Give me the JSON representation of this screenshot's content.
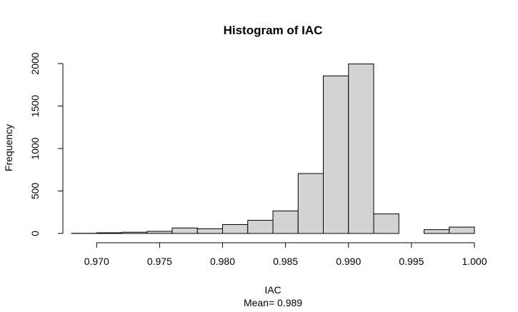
{
  "chart_data": {
    "type": "bar",
    "title": "Histogram of IAC",
    "xlabel": "IAC",
    "subtitle": "Mean= 0.989",
    "ylabel": "Frequency",
    "xlim": [
      0.968,
      1.0
    ],
    "ylim": [
      0,
      2000
    ],
    "x_ticks": [
      "0.970",
      "0.975",
      "0.980",
      "0.985",
      "0.990",
      "0.995",
      "1.000"
    ],
    "x_tick_values": [
      0.97,
      0.975,
      0.98,
      0.985,
      0.99,
      0.995,
      1.0
    ],
    "y_ticks": [
      "0",
      "500",
      "1000",
      "1500",
      "2000"
    ],
    "y_tick_values": [
      0,
      500,
      1000,
      1500,
      2000
    ],
    "bin_edges": [
      0.968,
      0.97,
      0.972,
      0.974,
      0.976,
      0.978,
      0.98,
      0.982,
      0.984,
      0.986,
      0.988,
      0.99,
      0.992,
      0.994,
      0.996,
      0.998,
      1.0
    ],
    "values": [
      2,
      8,
      15,
      25,
      65,
      55,
      105,
      155,
      265,
      705,
      1855,
      1995,
      230,
      0,
      45,
      75
    ],
    "bar_fill": "#d3d3d3",
    "bar_stroke": "#000000",
    "grid": false
  }
}
